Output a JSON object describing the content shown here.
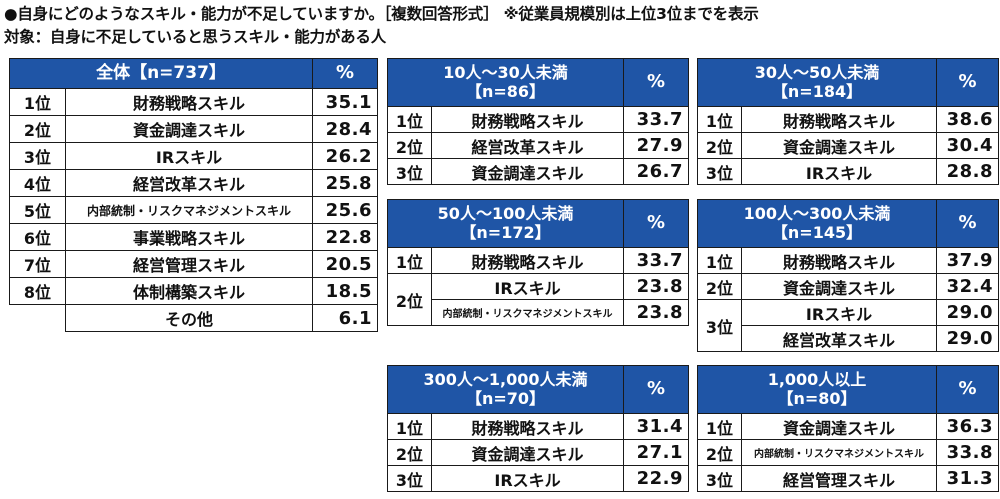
{
  "header": {
    "line1": "●自身にどのようなスキル・能力が不足していますか。［複数回答形式］ ※従業員規模別は上位3位までを表示",
    "line2": "対象：自身に不足していると思うスキル・能力がある人"
  },
  "chart_data": [
    {
      "type": "table",
      "title": "全体【n=737】",
      "title_lines": [
        "全体【n=737】"
      ],
      "pct_header": "%",
      "rows": [
        {
          "rank": "1位",
          "skill": "財務戦略スキル",
          "value": "35.1"
        },
        {
          "rank": "2位",
          "skill": "資金調達スキル",
          "value": "28.4"
        },
        {
          "rank": "3位",
          "skill": "IRスキル",
          "value": "26.2"
        },
        {
          "rank": "4位",
          "skill": "経営改革スキル",
          "value": "25.8"
        },
        {
          "rank": "5位",
          "skill": "内部統制・リスクマネジメントスキル",
          "value": "25.6"
        },
        {
          "rank": "6位",
          "skill": "事業戦略スキル",
          "value": "22.8"
        },
        {
          "rank": "7位",
          "skill": "経営管理スキル",
          "value": "20.5"
        },
        {
          "rank": "8位",
          "skill": "体制構築スキル",
          "value": "18.5"
        },
        {
          "rank": "",
          "skill": "その他",
          "value": "6.1"
        }
      ]
    },
    {
      "type": "table",
      "title": "10人～30人未満【n=86】",
      "title_lines": [
        "10人～30人未満",
        "【n=86】"
      ],
      "pct_header": "%",
      "rows": [
        {
          "rank": "1位",
          "skill": "財務戦略スキル",
          "value": "33.7"
        },
        {
          "rank": "2位",
          "skill": "経営改革スキル",
          "value": "27.9"
        },
        {
          "rank": "3位",
          "skill": "資金調達スキル",
          "value": "26.7"
        }
      ]
    },
    {
      "type": "table",
      "title": "30人～50人未満【n=184】",
      "title_lines": [
        "30人～50人未満",
        "【n=184】"
      ],
      "pct_header": "%",
      "rows": [
        {
          "rank": "1位",
          "skill": "財務戦略スキル",
          "value": "38.6"
        },
        {
          "rank": "2位",
          "skill": "資金調達スキル",
          "value": "30.4"
        },
        {
          "rank": "3位",
          "skill": "IRスキル",
          "value": "28.8"
        }
      ]
    },
    {
      "type": "table",
      "title": "50人～100人未満【n=172】",
      "title_lines": [
        "50人～100人未満",
        "【n=172】"
      ],
      "pct_header": "%",
      "rows": [
        {
          "rank": "1位",
          "skill": "財務戦略スキル",
          "value": "33.7"
        },
        {
          "rank": "2位",
          "skill": "IRスキル",
          "value": "23.8"
        },
        {
          "rank": "2位",
          "skill": "内部統制・リスクマネジメントスキル",
          "value": "23.8"
        }
      ]
    },
    {
      "type": "table",
      "title": "100人～300人未満【n=145】",
      "title_lines": [
        "100人～300人未満",
        "【n=145】"
      ],
      "pct_header": "%",
      "rows": [
        {
          "rank": "1位",
          "skill": "財務戦略スキル",
          "value": "37.9"
        },
        {
          "rank": "2位",
          "skill": "資金調達スキル",
          "value": "32.4"
        },
        {
          "rank": "3位",
          "skill": "IRスキル",
          "value": "29.0"
        },
        {
          "rank": "3位",
          "skill": "経営改革スキル",
          "value": "29.0"
        }
      ]
    },
    {
      "type": "table",
      "title": "300人～1,000人未満【n=70】",
      "title_lines": [
        "300人～1,000人未満",
        "【n=70】"
      ],
      "pct_header": "%",
      "rows": [
        {
          "rank": "1位",
          "skill": "財務戦略スキル",
          "value": "31.4"
        },
        {
          "rank": "2位",
          "skill": "資金調達スキル",
          "value": "27.1"
        },
        {
          "rank": "3位",
          "skill": "IRスキル",
          "value": "22.9"
        }
      ]
    },
    {
      "type": "table",
      "title": "1,000人以上【n=80】",
      "title_lines": [
        "1,000人以上",
        "【n=80】"
      ],
      "pct_header": "%",
      "rows": [
        {
          "rank": "1位",
          "skill": "資金調達スキル",
          "value": "36.3"
        },
        {
          "rank": "2位",
          "skill": "内部統制・リスクマネジメントスキル",
          "value": "33.8"
        },
        {
          "rank": "3位",
          "skill": "経営管理スキル",
          "value": "31.3"
        }
      ]
    }
  ]
}
